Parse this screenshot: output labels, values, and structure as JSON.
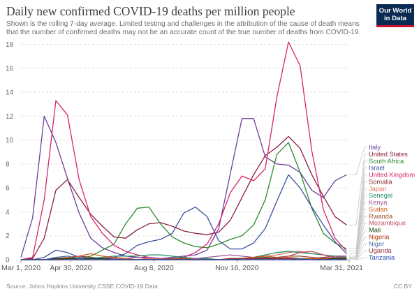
{
  "header": {
    "title": "Daily new confirmed COVID-19 deaths per million people",
    "subtitle": "Shown is the rolling 7-day average. Limited testing and challenges in the attribution of the cause of death means that the number of confirmed deaths may not be an accurate count of the true number of deaths from COVID-19.",
    "logo_line1": "Our World",
    "logo_line2": "in Data"
  },
  "footer": {
    "source": "Source: Johns Hopkins University CSSE COVID-19 Data",
    "license": "CC BY"
  },
  "chart_data": {
    "type": "line",
    "title": "Daily new confirmed COVID-19 deaths per million people",
    "xlabel": "",
    "ylabel": "",
    "x_ticks": [
      "Mar 1, 2020",
      "Apr 30, 2020",
      "Aug 8, 2020",
      "Nov 16, 2020",
      "Mar 31, 2021"
    ],
    "x_range": [
      "2020-03-01",
      "2021-03-31"
    ],
    "y_ticks": [
      0,
      2,
      4,
      6,
      8,
      10,
      12,
      14,
      16,
      18
    ],
    "ylim": [
      0,
      18.5
    ],
    "grid": "horizontal dashed",
    "legend_position": "right",
    "x": [
      "2020-03-01",
      "2020-03-15",
      "2020-03-29",
      "2020-04-12",
      "2020-04-26",
      "2020-05-10",
      "2020-05-24",
      "2020-06-07",
      "2020-06-21",
      "2020-07-05",
      "2020-07-19",
      "2020-08-02",
      "2020-08-16",
      "2020-08-30",
      "2020-09-13",
      "2020-09-27",
      "2020-10-11",
      "2020-10-25",
      "2020-11-08",
      "2020-11-22",
      "2020-12-06",
      "2020-12-20",
      "2021-01-03",
      "2021-01-17",
      "2021-01-31",
      "2021-02-14",
      "2021-02-28",
      "2021-03-14",
      "2021-03-28"
    ],
    "series": [
      {
        "name": "Italy",
        "color": "#6b3d9a",
        "values": [
          0.2,
          3.5,
          12.0,
          9.8,
          6.8,
          3.9,
          1.8,
          1.0,
          0.6,
          0.3,
          0.2,
          0.1,
          0.1,
          0.2,
          0.3,
          0.4,
          0.8,
          2.6,
          7.2,
          11.8,
          11.8,
          8.6,
          8.0,
          7.9,
          7.3,
          5.8,
          5.2,
          6.6,
          7.1
        ]
      },
      {
        "name": "United States",
        "color": "#8b1e3f",
        "values": [
          0.0,
          0.1,
          1.8,
          5.8,
          6.7,
          5.2,
          3.8,
          2.8,
          1.9,
          1.8,
          2.5,
          3.0,
          3.1,
          2.8,
          2.4,
          2.2,
          2.1,
          2.3,
          3.3,
          5.2,
          7.1,
          8.7,
          9.4,
          10.3,
          9.3,
          7.1,
          5.3,
          3.6,
          2.9
        ]
      },
      {
        "name": "South Africa",
        "color": "#2d8a2d",
        "values": [
          0.0,
          0.0,
          0.0,
          0.0,
          0.1,
          0.1,
          0.3,
          0.8,
          1.3,
          3.0,
          4.3,
          4.4,
          3.0,
          1.9,
          1.4,
          1.1,
          1.0,
          1.3,
          1.7,
          2.0,
          2.9,
          5.0,
          8.8,
          9.8,
          7.3,
          4.3,
          2.2,
          1.4,
          0.9
        ]
      },
      {
        "name": "Israel",
        "color": "#3b4fa0",
        "values": [
          0.0,
          0.0,
          0.2,
          0.8,
          0.6,
          0.2,
          0.1,
          0.1,
          0.2,
          0.5,
          1.2,
          1.5,
          1.7,
          2.2,
          3.9,
          4.4,
          3.6,
          1.6,
          0.9,
          0.9,
          1.4,
          2.6,
          4.9,
          7.1,
          6.0,
          4.4,
          2.9,
          1.5,
          0.5
        ]
      },
      {
        "name": "United Kingdom",
        "color": "#d6246e",
        "values": [
          0.0,
          0.2,
          5.0,
          13.3,
          12.1,
          6.7,
          3.6,
          2.2,
          1.2,
          0.7,
          0.4,
          0.2,
          0.1,
          0.1,
          0.2,
          0.6,
          1.3,
          3.0,
          5.6,
          7.0,
          6.6,
          7.6,
          13.6,
          18.2,
          16.2,
          9.1,
          4.2,
          1.8,
          0.7
        ]
      },
      {
        "name": "Somalia",
        "color": "#883039",
        "values": [
          0.0,
          0.0,
          0.0,
          0.1,
          0.2,
          0.3,
          0.2,
          0.1,
          0.1,
          0.0,
          0.0,
          0.0,
          0.0,
          0.0,
          0.0,
          0.0,
          0.0,
          0.0,
          0.0,
          0.0,
          0.0,
          0.0,
          0.0,
          0.0,
          0.0,
          0.1,
          0.2,
          0.3,
          0.3
        ]
      },
      {
        "name": "Japan",
        "color": "#e56e5a",
        "values": [
          0.0,
          0.0,
          0.0,
          0.1,
          0.2,
          0.1,
          0.0,
          0.0,
          0.0,
          0.0,
          0.0,
          0.1,
          0.1,
          0.1,
          0.1,
          0.0,
          0.0,
          0.0,
          0.1,
          0.1,
          0.2,
          0.3,
          0.4,
          0.6,
          0.7,
          0.5,
          0.4,
          0.2,
          0.2
        ]
      },
      {
        "name": "Senegal",
        "color": "#1f8f6c",
        "values": [
          0.0,
          0.0,
          0.0,
          0.0,
          0.1,
          0.1,
          0.1,
          0.2,
          0.3,
          0.3,
          0.3,
          0.4,
          0.4,
          0.3,
          0.2,
          0.1,
          0.1,
          0.0,
          0.0,
          0.1,
          0.2,
          0.4,
          0.6,
          0.7,
          0.6,
          0.5,
          0.4,
          0.3,
          0.2
        ]
      },
      {
        "name": "Kenya",
        "color": "#a2559c",
        "values": [
          0.0,
          0.0,
          0.0,
          0.0,
          0.0,
          0.0,
          0.0,
          0.0,
          0.1,
          0.1,
          0.2,
          0.2,
          0.1,
          0.1,
          0.1,
          0.1,
          0.2,
          0.3,
          0.4,
          0.3,
          0.2,
          0.1,
          0.1,
          0.0,
          0.0,
          0.0,
          0.1,
          0.2,
          0.3
        ]
      },
      {
        "name": "Sudan",
        "color": "#d4561f",
        "values": [
          0.0,
          0.0,
          0.0,
          0.0,
          0.1,
          0.3,
          0.5,
          0.3,
          0.2,
          0.1,
          0.0,
          0.0,
          0.0,
          0.0,
          0.0,
          0.0,
          0.0,
          0.0,
          0.0,
          0.1,
          0.2,
          0.3,
          0.2,
          0.2,
          0.1,
          0.1,
          0.1,
          0.1,
          0.0
        ]
      },
      {
        "name": "Rwanda",
        "color": "#9a5129",
        "values": [
          0.0,
          0.0,
          0.0,
          0.0,
          0.0,
          0.0,
          0.0,
          0.0,
          0.0,
          0.0,
          0.0,
          0.0,
          0.0,
          0.1,
          0.1,
          0.0,
          0.0,
          0.0,
          0.0,
          0.0,
          0.0,
          0.1,
          0.2,
          0.3,
          0.3,
          0.2,
          0.1,
          0.1,
          0.0
        ]
      },
      {
        "name": "Mozambique",
        "color": "#c15065",
        "values": [
          0.0,
          0.0,
          0.0,
          0.0,
          0.0,
          0.0,
          0.0,
          0.0,
          0.0,
          0.0,
          0.0,
          0.0,
          0.0,
          0.0,
          0.0,
          0.0,
          0.0,
          0.0,
          0.0,
          0.0,
          0.0,
          0.0,
          0.1,
          0.3,
          0.6,
          0.7,
          0.4,
          0.2,
          0.1
        ]
      },
      {
        "name": "Mali",
        "color": "#18470f",
        "values": [
          0.0,
          0.0,
          0.0,
          0.1,
          0.1,
          0.1,
          0.1,
          0.1,
          0.0,
          0.0,
          0.0,
          0.0,
          0.0,
          0.0,
          0.0,
          0.0,
          0.0,
          0.0,
          0.0,
          0.1,
          0.1,
          0.2,
          0.1,
          0.1,
          0.1,
          0.0,
          0.0,
          0.1,
          0.1
        ]
      },
      {
        "name": "Nigeria",
        "color": "#b13507",
        "values": [
          0.0,
          0.0,
          0.0,
          0.0,
          0.0,
          0.0,
          0.0,
          0.0,
          0.0,
          0.0,
          0.0,
          0.0,
          0.0,
          0.0,
          0.0,
          0.0,
          0.0,
          0.0,
          0.0,
          0.0,
          0.0,
          0.0,
          0.0,
          0.0,
          0.0,
          0.0,
          0.0,
          0.0,
          0.0
        ]
      },
      {
        "name": "Niger",
        "color": "#4c6a9c",
        "values": [
          0.0,
          0.0,
          0.0,
          0.2,
          0.3,
          0.1,
          0.0,
          0.0,
          0.0,
          0.0,
          0.0,
          0.0,
          0.0,
          0.0,
          0.0,
          0.0,
          0.0,
          0.0,
          0.0,
          0.0,
          0.0,
          0.1,
          0.1,
          0.1,
          0.1,
          0.0,
          0.0,
          0.0,
          0.0
        ]
      },
      {
        "name": "Uganda",
        "color": "#883039",
        "values": [
          0.0,
          0.0,
          0.0,
          0.0,
          0.0,
          0.0,
          0.0,
          0.0,
          0.0,
          0.0,
          0.0,
          0.0,
          0.0,
          0.0,
          0.0,
          0.0,
          0.0,
          0.0,
          0.1,
          0.1,
          0.1,
          0.1,
          0.1,
          0.1,
          0.0,
          0.0,
          0.0,
          0.0,
          0.0
        ]
      },
      {
        "name": "Tanzania",
        "color": "#2a4faf",
        "values": [
          0.0,
          0.0,
          0.0,
          0.0,
          0.0,
          0.0,
          0.0,
          0.0,
          0.0,
          0.0,
          0.0,
          0.0,
          0.0,
          0.0,
          0.0,
          0.0,
          0.0,
          0.0,
          0.0,
          0.0,
          0.0,
          0.0,
          0.0,
          0.0,
          0.0,
          0.0,
          0.0,
          0.0,
          0.0
        ]
      }
    ]
  }
}
